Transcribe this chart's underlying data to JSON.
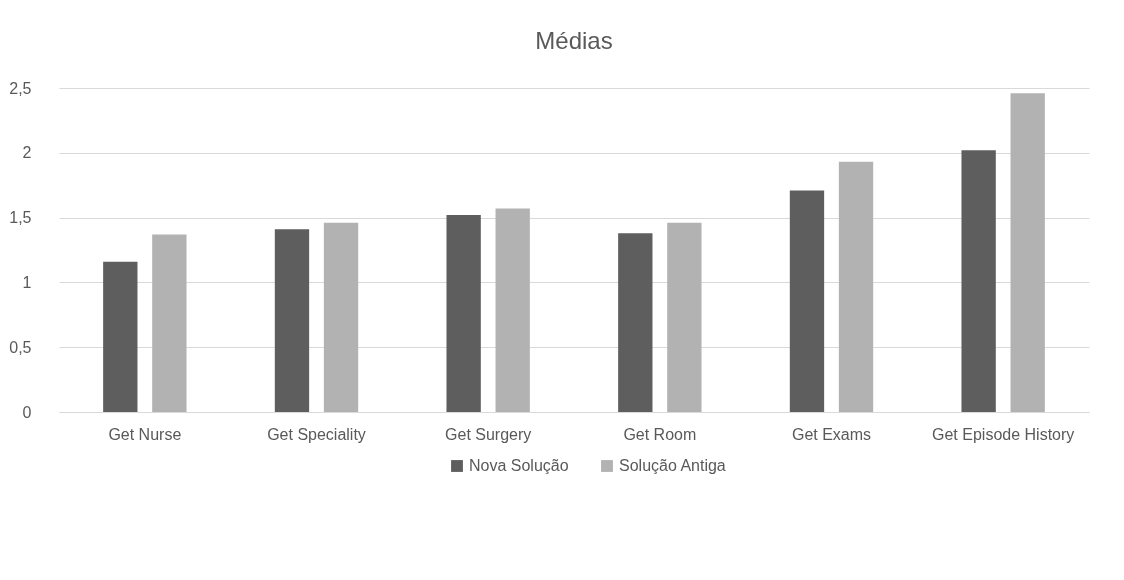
{
  "chart_data": {
    "type": "bar",
    "title": "Médias",
    "categories": [
      "Get Nurse",
      "Get Speciality",
      "Get Surgery",
      "Get Room",
      "Get Exams",
      "Get Episode History"
    ],
    "series": [
      {
        "name": "Nova Solução",
        "color": "#5e5e5e",
        "values": [
          1.16,
          1.41,
          1.52,
          1.38,
          1.71,
          2.02
        ]
      },
      {
        "name": "Solução Antiga",
        "color": "#b2b2b2",
        "values": [
          1.37,
          1.46,
          1.57,
          1.46,
          1.93,
          2.46
        ]
      }
    ],
    "ylim": [
      0,
      2.5
    ],
    "yticks": [
      0,
      {
        "value": 0.5,
        "label": "0,5"
      },
      1,
      {
        "value": 1.5,
        "label": "1,5"
      },
      2,
      {
        "value": 2.5,
        "label": "2,5"
      }
    ],
    "grid": "y",
    "legend": "bottom"
  }
}
